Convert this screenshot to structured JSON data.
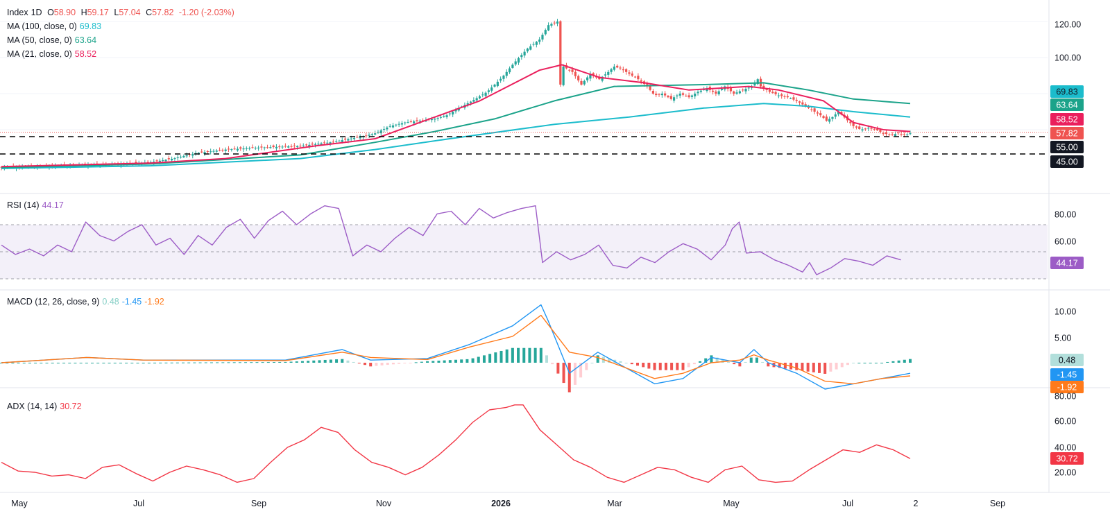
{
  "colors": {
    "up": "#26a69a",
    "down": "#ef5350",
    "ma100": "#1bbccc",
    "ma50": "#1ba38a",
    "ma21": "#ea1f5c",
    "rsi": "#9c5cc6",
    "macd": "#2196f3",
    "signal": "#ff7a1a",
    "adx": "#f23645",
    "grid": "#f0f3fa",
    "axis_text": "#131722"
  },
  "legend": {
    "price": {
      "symbol": "Index",
      "interval": "1D",
      "o_label": "O",
      "open": "58.90",
      "h_label": "H",
      "high": "59.17",
      "l_label": "L",
      "low": "57.04",
      "c_label": "C",
      "close": "57.82",
      "change": "-1.20 (-2.03%)"
    },
    "ma100": {
      "label": "MA (100, close, 0)",
      "value": "69.83"
    },
    "ma50": {
      "label": "MA (50, close, 0)",
      "value": "63.64"
    },
    "ma21": {
      "label": "MA (21, close, 0)",
      "value": "58.52"
    },
    "rsi": {
      "label": "RSI (14)",
      "value": "44.17"
    },
    "macd": {
      "label": "MACD (12, 26, close, 9)",
      "hist": "0.48",
      "macd": "-1.45",
      "signal": "-1.92"
    },
    "adx": {
      "label": "ADX (14, 14)",
      "value": "30.72"
    }
  },
  "chart_data": [
    {
      "type": "candlestick",
      "title": "Index, 1D",
      "y_ticks": [
        "120.00",
        "100.00"
      ],
      "price_badges": [
        {
          "value": "69.83",
          "series": "MA100"
        },
        {
          "value": "63.64",
          "series": "MA50"
        },
        {
          "value": "58.52",
          "series": "MA21"
        },
        {
          "value": "57.82",
          "series": "Close"
        },
        {
          "value": "55.00",
          "series": "Support"
        },
        {
          "value": "45.00",
          "series": "Support"
        }
      ],
      "horizontal_levels": [
        55,
        45
      ],
      "x_labels": [
        "May",
        "Jul",
        "Sep",
        "Nov",
        "2026",
        "Mar",
        "May",
        "Jul",
        "2",
        "Sep"
      ],
      "price_path": [
        [
          0,
          39
        ],
        [
          40,
          40
        ],
        [
          80,
          41
        ],
        [
          100,
          42
        ],
        [
          115,
          44
        ],
        [
          130,
          47
        ],
        [
          150,
          49
        ],
        [
          170,
          50
        ],
        [
          200,
          51
        ],
        [
          220,
          53
        ],
        [
          240,
          56
        ],
        [
          250,
          58
        ],
        [
          260,
          62
        ],
        [
          270,
          64
        ],
        [
          280,
          65
        ],
        [
          290,
          66
        ],
        [
          298,
          68
        ],
        [
          306,
          72
        ],
        [
          315,
          76
        ],
        [
          325,
          81
        ],
        [
          335,
          89
        ],
        [
          343,
          97
        ],
        [
          352,
          105
        ],
        [
          360,
          110
        ],
        [
          366,
          118
        ],
        [
          372,
          120
        ],
        [
          374,
          85
        ],
        [
          376,
          95
        ],
        [
          382,
          92
        ],
        [
          388,
          85
        ],
        [
          394,
          91
        ],
        [
          400,
          88
        ],
        [
          406,
          92
        ],
        [
          410,
          95
        ],
        [
          414,
          94
        ],
        [
          420,
          91
        ],
        [
          426,
          88
        ],
        [
          432,
          84
        ],
        [
          437,
          79
        ],
        [
          442,
          80
        ],
        [
          448,
          77
        ],
        [
          454,
          80
        ],
        [
          460,
          78
        ],
        [
          466,
          81
        ],
        [
          472,
          83
        ],
        [
          478,
          80
        ],
        [
          484,
          84
        ],
        [
          490,
          80
        ],
        [
          496,
          82
        ],
        [
          502,
          84
        ],
        [
          506,
          88
        ],
        [
          508,
          84
        ],
        [
          514,
          81
        ],
        [
          520,
          79
        ],
        [
          526,
          78
        ],
        [
          532,
          76
        ],
        [
          538,
          73
        ],
        [
          544,
          70
        ],
        [
          548,
          68
        ],
        [
          552,
          65
        ],
        [
          556,
          67
        ],
        [
          560,
          70
        ],
        [
          565,
          66
        ],
        [
          570,
          62
        ],
        [
          575,
          60
        ],
        [
          580,
          61
        ],
        [
          585,
          60
        ],
        [
          590,
          58
        ],
        [
          595,
          57
        ],
        [
          600,
          58
        ],
        [
          605,
          57
        ],
        [
          608,
          58
        ]
      ],
      "ma100": [
        [
          0,
          38.5
        ],
        [
          100,
          40
        ],
        [
          200,
          44
        ],
        [
          250,
          49
        ],
        [
          300,
          55
        ],
        [
          370,
          63
        ],
        [
          420,
          67
        ],
        [
          470,
          72
        ],
        [
          510,
          74.5
        ],
        [
          540,
          73
        ],
        [
          570,
          70
        ],
        [
          608,
          67
        ]
      ],
      "ma50": [
        [
          0,
          39
        ],
        [
          100,
          41
        ],
        [
          200,
          46
        ],
        [
          250,
          53
        ],
        [
          290,
          59
        ],
        [
          330,
          66
        ],
        [
          370,
          76
        ],
        [
          410,
          84
        ],
        [
          470,
          85
        ],
        [
          510,
          86
        ],
        [
          540,
          82
        ],
        [
          570,
          77
        ],
        [
          608,
          74.5
        ]
      ],
      "ma21": [
        [
          0,
          39.5
        ],
        [
          100,
          41.5
        ],
        [
          150,
          44
        ],
        [
          210,
          51
        ],
        [
          250,
          55
        ],
        [
          280,
          64
        ],
        [
          320,
          76
        ],
        [
          360,
          93
        ],
        [
          375,
          96
        ],
        [
          400,
          89
        ],
        [
          430,
          86
        ],
        [
          460,
          82
        ],
        [
          500,
          84
        ],
        [
          520,
          82
        ],
        [
          550,
          76
        ],
        [
          570,
          64
        ],
        [
          590,
          60
        ],
        [
          608,
          59
        ]
      ]
    },
    {
      "type": "line",
      "name": "RSI (14)",
      "y_ticks": [
        "80.00",
        "60.00"
      ],
      "badge": "44.17",
      "bands": [
        70,
        50,
        30
      ],
      "values": [
        [
          0,
          55
        ],
        [
          10,
          48
        ],
        [
          20,
          52
        ],
        [
          30,
          47
        ],
        [
          40,
          55
        ],
        [
          50,
          50
        ],
        [
          60,
          72
        ],
        [
          70,
          62
        ],
        [
          80,
          58
        ],
        [
          90,
          65
        ],
        [
          100,
          70
        ],
        [
          110,
          55
        ],
        [
          120,
          60
        ],
        [
          130,
          48
        ],
        [
          140,
          62
        ],
        [
          150,
          55
        ],
        [
          160,
          68
        ],
        [
          170,
          74
        ],
        [
          180,
          60
        ],
        [
          190,
          73
        ],
        [
          200,
          80
        ],
        [
          210,
          70
        ],
        [
          220,
          78
        ],
        [
          230,
          84
        ],
        [
          240,
          82
        ],
        [
          250,
          47
        ],
        [
          260,
          55
        ],
        [
          270,
          50
        ],
        [
          280,
          60
        ],
        [
          290,
          68
        ],
        [
          300,
          62
        ],
        [
          310,
          78
        ],
        [
          320,
          80
        ],
        [
          330,
          70
        ],
        [
          340,
          82
        ],
        [
          350,
          75
        ],
        [
          360,
          79
        ],
        [
          370,
          82
        ],
        [
          380,
          84
        ],
        [
          385,
          42
        ],
        [
          395,
          50
        ],
        [
          405,
          44
        ],
        [
          415,
          48
        ],
        [
          425,
          55
        ],
        [
          435,
          40
        ],
        [
          445,
          38
        ],
        [
          455,
          46
        ],
        [
          465,
          42
        ],
        [
          475,
          50
        ],
        [
          485,
          56
        ],
        [
          495,
          52
        ],
        [
          505,
          44
        ],
        [
          515,
          55
        ],
        [
          520,
          67
        ],
        [
          525,
          72
        ],
        [
          530,
          49
        ],
        [
          540,
          50
        ],
        [
          550,
          44
        ],
        [
          560,
          40
        ],
        [
          570,
          35
        ],
        [
          575,
          42
        ],
        [
          580,
          33
        ],
        [
          590,
          38
        ],
        [
          600,
          45
        ],
        [
          610,
          43
        ],
        [
          620,
          40
        ],
        [
          630,
          47
        ],
        [
          640,
          44
        ]
      ]
    },
    {
      "type": "line",
      "name": "MACD (12, 26, close, 9)",
      "y_ticks": [
        "10.00",
        "5.00"
      ],
      "badges": [
        "0.48",
        "-1.45",
        "-1.92"
      ],
      "macd_values": [
        [
          0,
          0
        ],
        [
          60,
          1
        ],
        [
          100,
          0.5
        ],
        [
          200,
          0.5
        ],
        [
          240,
          2.5
        ],
        [
          260,
          0.5
        ],
        [
          300,
          0.8
        ],
        [
          330,
          3.5
        ],
        [
          360,
          7
        ],
        [
          380,
          11
        ],
        [
          385,
          8
        ],
        [
          400,
          -2
        ],
        [
          420,
          2
        ],
        [
          440,
          -1
        ],
        [
          460,
          -4
        ],
        [
          480,
          -3
        ],
        [
          500,
          1
        ],
        [
          520,
          0
        ],
        [
          530,
          2.5
        ],
        [
          540,
          0
        ],
        [
          560,
          -2
        ],
        [
          580,
          -5
        ],
        [
          600,
          -4
        ],
        [
          620,
          -3
        ],
        [
          640,
          -2
        ]
      ],
      "signal_values": [
        [
          0,
          0
        ],
        [
          60,
          1
        ],
        [
          100,
          0.5
        ],
        [
          200,
          0.4
        ],
        [
          240,
          2
        ],
        [
          260,
          1
        ],
        [
          300,
          0.6
        ],
        [
          330,
          3
        ],
        [
          360,
          5
        ],
        [
          380,
          9
        ],
        [
          400,
          2
        ],
        [
          420,
          1
        ],
        [
          440,
          -1
        ],
        [
          460,
          -3
        ],
        [
          480,
          -2
        ],
        [
          500,
          0
        ],
        [
          520,
          0.5
        ],
        [
          530,
          1.5
        ],
        [
          540,
          0.5
        ],
        [
          560,
          -1
        ],
        [
          580,
          -3.5
        ],
        [
          600,
          -4
        ],
        [
          620,
          -3
        ],
        [
          640,
          -2.5
        ]
      ]
    },
    {
      "type": "line",
      "name": "ADX (14, 14)",
      "y_ticks": [
        "80.00",
        "60.00",
        "40.00",
        "20.00"
      ],
      "badge": "30.72",
      "values": [
        [
          0,
          28
        ],
        [
          10,
          21
        ],
        [
          20,
          20
        ],
        [
          30,
          17
        ],
        [
          40,
          18
        ],
        [
          50,
          15
        ],
        [
          60,
          24
        ],
        [
          70,
          26
        ],
        [
          80,
          19
        ],
        [
          90,
          13
        ],
        [
          100,
          20
        ],
        [
          110,
          25
        ],
        [
          120,
          22
        ],
        [
          130,
          18
        ],
        [
          140,
          12
        ],
        [
          150,
          15
        ],
        [
          160,
          28
        ],
        [
          170,
          40
        ],
        [
          180,
          46
        ],
        [
          190,
          56
        ],
        [
          200,
          52
        ],
        [
          210,
          38
        ],
        [
          220,
          28
        ],
        [
          230,
          24
        ],
        [
          240,
          18
        ],
        [
          250,
          24
        ],
        [
          260,
          34
        ],
        [
          270,
          46
        ],
        [
          280,
          60
        ],
        [
          290,
          70
        ],
        [
          300,
          72
        ],
        [
          305,
          74
        ],
        [
          310,
          74
        ],
        [
          320,
          54
        ],
        [
          330,
          42
        ],
        [
          340,
          30
        ],
        [
          350,
          24
        ],
        [
          360,
          16
        ],
        [
          370,
          12
        ],
        [
          380,
          18
        ],
        [
          390,
          24
        ],
        [
          400,
          22
        ],
        [
          410,
          16
        ],
        [
          420,
          12
        ],
        [
          430,
          22
        ],
        [
          440,
          25
        ],
        [
          450,
          14
        ],
        [
          460,
          12
        ],
        [
          470,
          13
        ],
        [
          480,
          22
        ],
        [
          490,
          30
        ],
        [
          500,
          38
        ],
        [
          510,
          36
        ],
        [
          520,
          42
        ],
        [
          530,
          38
        ],
        [
          540,
          31
        ]
      ]
    }
  ]
}
